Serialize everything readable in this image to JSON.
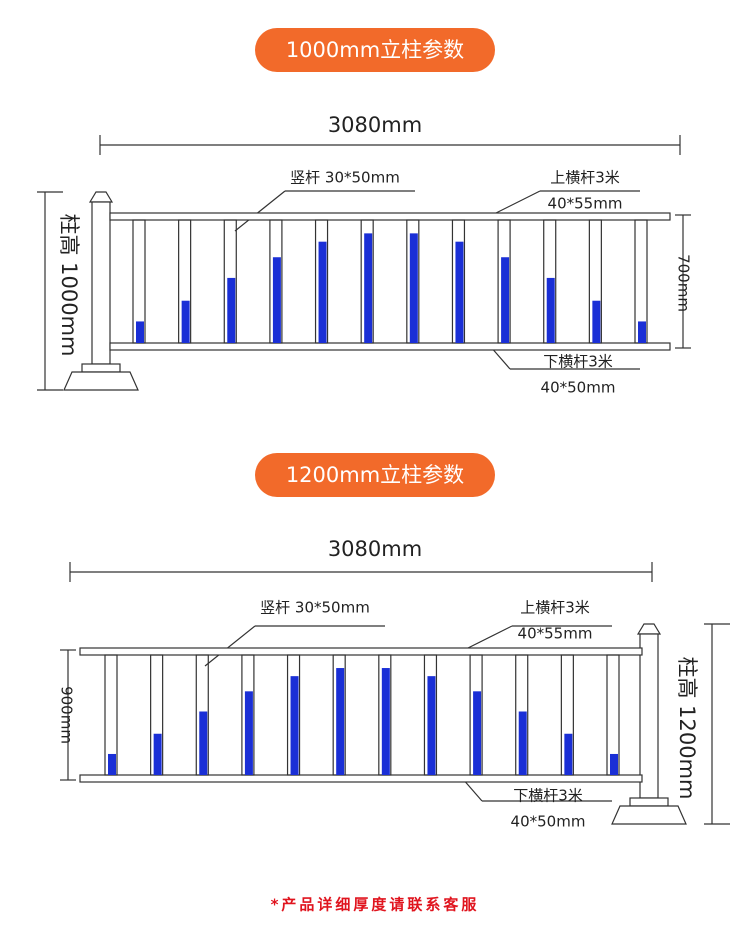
{
  "sections": [
    {
      "badge": "1000mm立柱参数",
      "width": "3080mm",
      "vertical_bar": "竖杆 30*50mm",
      "top_rail": "上横杆3米",
      "top_rail_size": "40*55mm",
      "bottom_rail": "下横杆3米",
      "bottom_rail_size": "40*50mm",
      "rail_gap": "700mm",
      "post_height": "柱高 1000mm"
    },
    {
      "badge": "1200mm立柱参数",
      "width": "3080mm",
      "vertical_bar": "竖杆 30*50mm",
      "top_rail": "上横杆3米",
      "top_rail_size": "40*55mm",
      "bottom_rail": "下横杆3米",
      "bottom_rail_size": "40*50mm",
      "rail_gap": "900mm",
      "post_height": "柱高 1200mm"
    }
  ],
  "footer": "*产品详细厚度请联系客服"
}
